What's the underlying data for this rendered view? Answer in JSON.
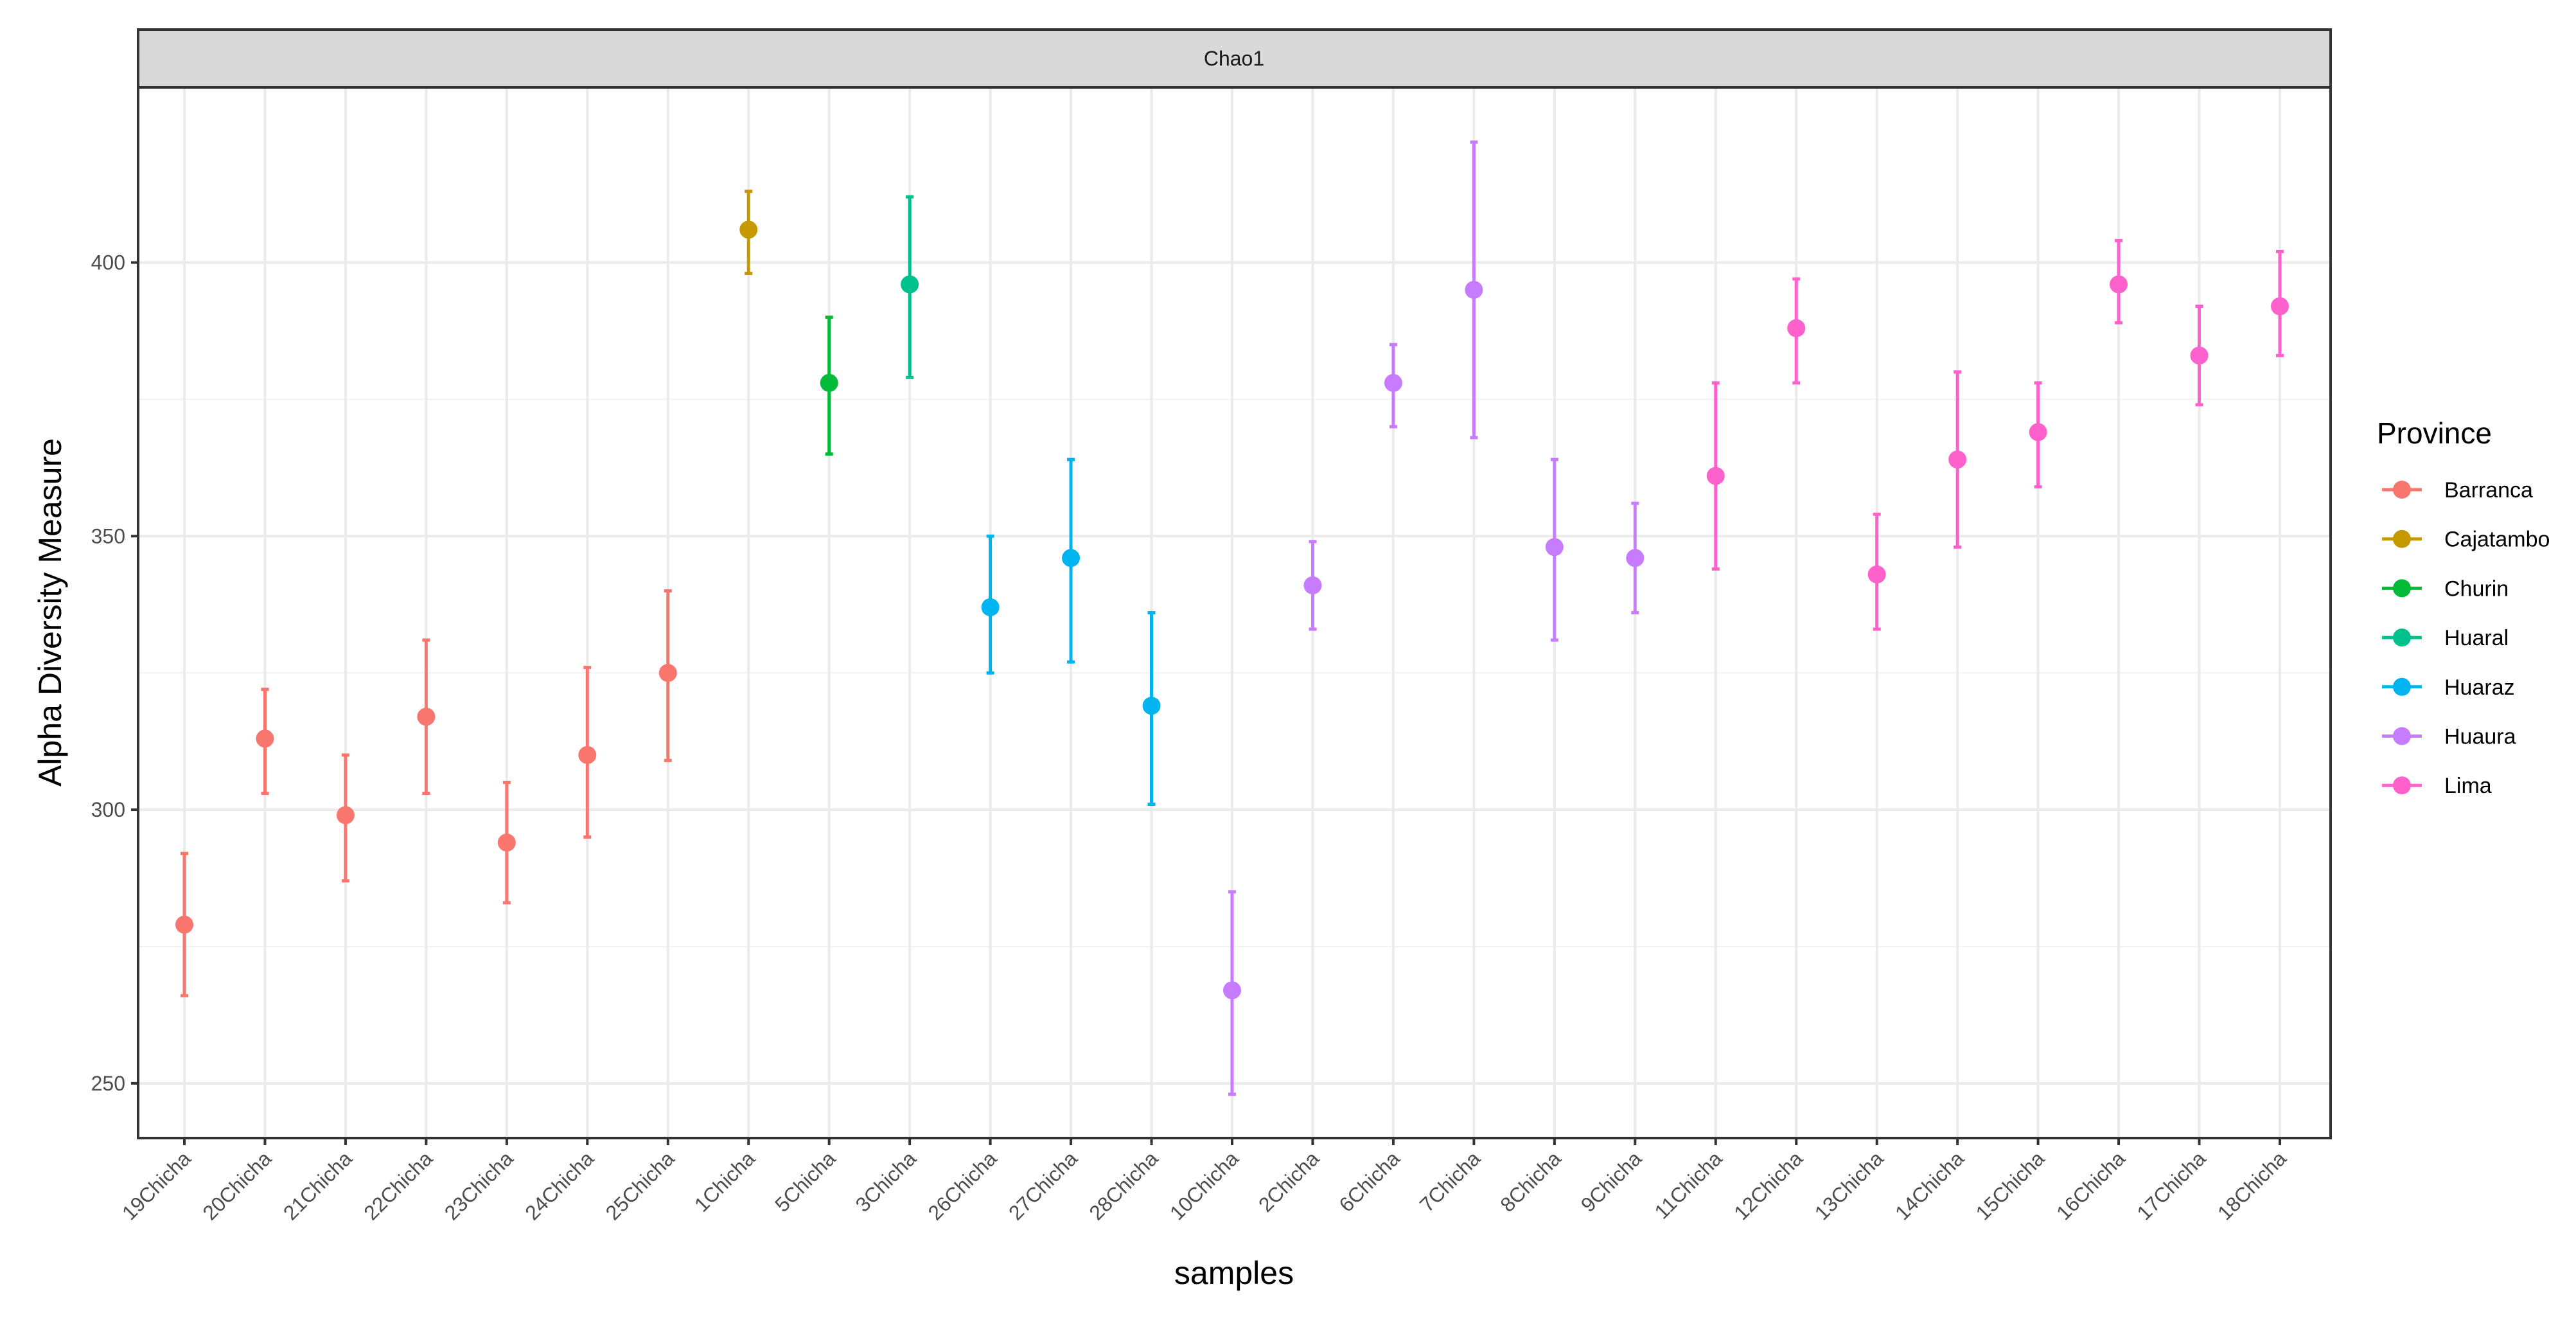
{
  "chart_data": {
    "type": "scatter",
    "strip_title": "Chao1",
    "xlabel": "samples",
    "ylabel": "Alpha Diversity Measure",
    "ylim": [
      240,
      432
    ],
    "yticks": [
      250,
      300,
      350,
      400
    ],
    "grid": true,
    "legend": {
      "title": "Province",
      "position": "right",
      "entries": [
        {
          "name": "Barranca",
          "color": "#F8766D"
        },
        {
          "name": "Cajatambo",
          "color": "#C49A00"
        },
        {
          "name": "Churin",
          "color": "#00BA38"
        },
        {
          "name": "Huaral",
          "color": "#00C08B"
        },
        {
          "name": "Huaraz",
          "color": "#00B4EF"
        },
        {
          "name": "Huaura",
          "color": "#C77CFF"
        },
        {
          "name": "Lima",
          "color": "#FF61CC"
        }
      ]
    },
    "points": [
      {
        "sample": "19Chicha",
        "province": "Barranca",
        "value": 279,
        "low": 266,
        "high": 292
      },
      {
        "sample": "20Chicha",
        "province": "Barranca",
        "value": 313,
        "low": 303,
        "high": 322
      },
      {
        "sample": "21Chicha",
        "province": "Barranca",
        "value": 299,
        "low": 287,
        "high": 310
      },
      {
        "sample": "22Chicha",
        "province": "Barranca",
        "value": 317,
        "low": 303,
        "high": 331
      },
      {
        "sample": "23Chicha",
        "province": "Barranca",
        "value": 294,
        "low": 283,
        "high": 305
      },
      {
        "sample": "24Chicha",
        "province": "Barranca",
        "value": 310,
        "low": 295,
        "high": 326
      },
      {
        "sample": "25Chicha",
        "province": "Barranca",
        "value": 325,
        "low": 309,
        "high": 340
      },
      {
        "sample": "1Chicha",
        "province": "Cajatambo",
        "value": 406,
        "low": 398,
        "high": 413
      },
      {
        "sample": "5Chicha",
        "province": "Churin",
        "value": 378,
        "low": 365,
        "high": 390
      },
      {
        "sample": "3Chicha",
        "province": "Huaral",
        "value": 396,
        "low": 379,
        "high": 412
      },
      {
        "sample": "26Chicha",
        "province": "Huaraz",
        "value": 337,
        "low": 325,
        "high": 350
      },
      {
        "sample": "27Chicha",
        "province": "Huaraz",
        "value": 346,
        "low": 327,
        "high": 364
      },
      {
        "sample": "28Chicha",
        "province": "Huaraz",
        "value": 319,
        "low": 301,
        "high": 336
      },
      {
        "sample": "10Chicha",
        "province": "Huaura",
        "value": 267,
        "low": 248,
        "high": 285
      },
      {
        "sample": "2Chicha",
        "province": "Huaura",
        "value": 341,
        "low": 333,
        "high": 349
      },
      {
        "sample": "6Chicha",
        "province": "Huaura",
        "value": 378,
        "low": 370,
        "high": 385
      },
      {
        "sample": "7Chicha",
        "province": "Huaura",
        "value": 395,
        "low": 368,
        "high": 422
      },
      {
        "sample": "8Chicha",
        "province": "Huaura",
        "value": 348,
        "low": 331,
        "high": 364
      },
      {
        "sample": "9Chicha",
        "province": "Huaura",
        "value": 346,
        "low": 336,
        "high": 356
      },
      {
        "sample": "11Chicha",
        "province": "Lima",
        "value": 361,
        "low": 344,
        "high": 378
      },
      {
        "sample": "12Chicha",
        "province": "Lima",
        "value": 388,
        "low": 378,
        "high": 397
      },
      {
        "sample": "13Chicha",
        "province": "Lima",
        "value": 343,
        "low": 333,
        "high": 354
      },
      {
        "sample": "14Chicha",
        "province": "Lima",
        "value": 364,
        "low": 348,
        "high": 380
      },
      {
        "sample": "15Chicha",
        "province": "Lima",
        "value": 369,
        "low": 359,
        "high": 378
      },
      {
        "sample": "16Chicha",
        "province": "Lima",
        "value": 396,
        "low": 389,
        "high": 404
      },
      {
        "sample": "17Chicha",
        "province": "Lima",
        "value": 383,
        "low": 374,
        "high": 392
      },
      {
        "sample": "18Chicha",
        "province": "Lima",
        "value": 392,
        "low": 383,
        "high": 402
      }
    ]
  }
}
